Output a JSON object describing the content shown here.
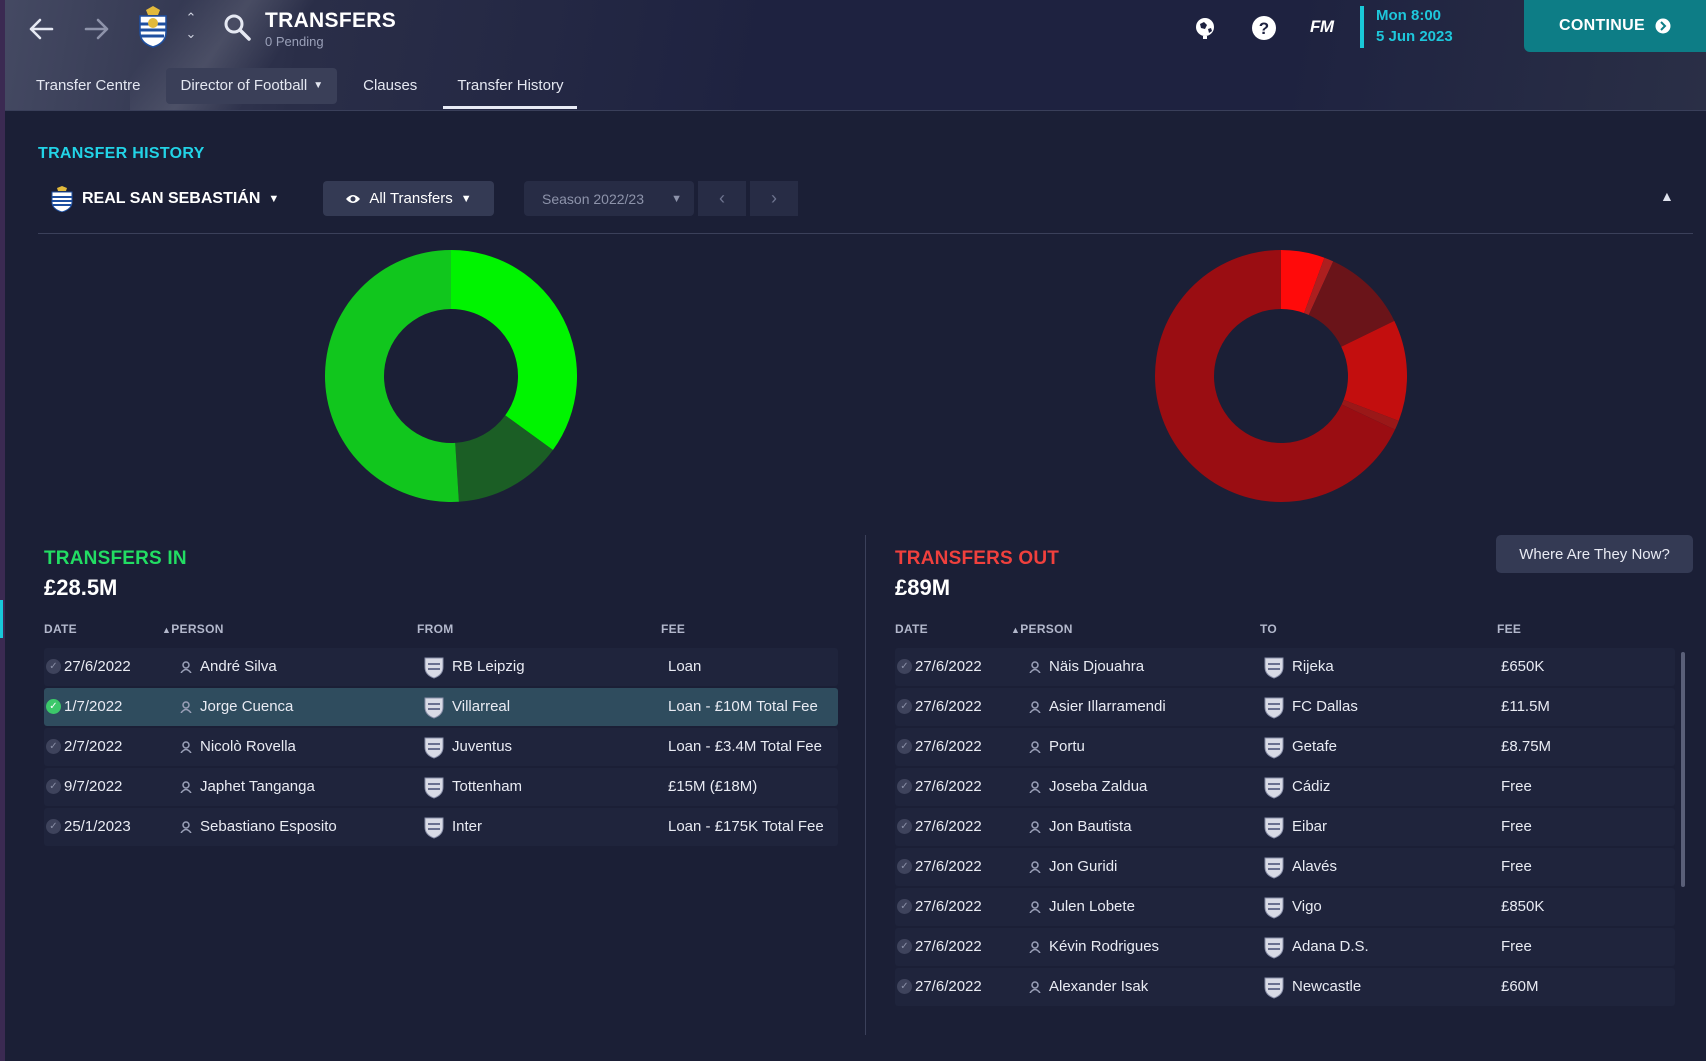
{
  "header": {
    "title": "TRANSFERS",
    "subtitle": "0 Pending",
    "nav_back_icon": "back-arrow-icon",
    "nav_forward_icon": "forward-arrow-icon",
    "tabs": [
      {
        "label": "Transfer Centre"
      },
      {
        "label": "Director of Football"
      },
      {
        "label": "Clauses"
      },
      {
        "label": "Transfer History"
      }
    ],
    "logo": "FM",
    "date_time": "Mon 8:00",
    "date_day": "5 Jun 2023",
    "continue_label": "CONTINUE",
    "accent": "#1ec7db",
    "continue_color": "#0d7d86"
  },
  "panel": {
    "title": "TRANSFER HISTORY",
    "club": "REAL SAN SEBASTIÁN",
    "filter": "All Transfers",
    "season": "Season 2022/23"
  },
  "transfers_in": {
    "label": "TRANSFERS IN",
    "total": "£28.5M",
    "color": "#14e05a",
    "headers": {
      "date": "DATE",
      "person": "PERSON",
      "from": "FROM",
      "fee": "FEE"
    },
    "rows": [
      {
        "date": "27/6/2022",
        "person": "André Silva",
        "club": "RB Leipzig",
        "fee": "Loan",
        "selected": false
      },
      {
        "date": "1/7/2022",
        "person": "Jorge Cuenca",
        "club": "Villarreal",
        "fee": "Loan - £10M Total Fee",
        "selected": true
      },
      {
        "date": "2/7/2022",
        "person": "Nicolò Rovella",
        "club": "Juventus",
        "fee": "Loan - £3.4M Total Fee",
        "selected": false
      },
      {
        "date": "9/7/2022",
        "person": "Japhet Tanganga",
        "club": "Tottenham",
        "fee": "£15M (£18M)",
        "selected": false
      },
      {
        "date": "25/1/2023",
        "person": "Sebastiano Esposito",
        "club": "Inter",
        "fee": "Loan - £175K Total Fee",
        "selected": false
      }
    ]
  },
  "transfers_out": {
    "label": "TRANSFERS OUT",
    "total": "£89M",
    "color": "#ee3b3b",
    "where_button": "Where Are They Now?",
    "headers": {
      "date": "DATE",
      "person": "PERSON",
      "to": "TO",
      "fee": "FEE"
    },
    "rows": [
      {
        "date": "27/6/2022",
        "person": "Näis Djouahra",
        "club": "Rijeka",
        "fee": "£650K"
      },
      {
        "date": "27/6/2022",
        "person": "Asier Illarramendi",
        "club": "FC Dallas",
        "fee": "£11.5M"
      },
      {
        "date": "27/6/2022",
        "person": "Portu",
        "club": "Getafe",
        "fee": "£8.75M"
      },
      {
        "date": "27/6/2022",
        "person": "Joseba Zaldua",
        "club": "Cádiz",
        "fee": "Free"
      },
      {
        "date": "27/6/2022",
        "person": "Jon Bautista",
        "club": "Eibar",
        "fee": "Free"
      },
      {
        "date": "27/6/2022",
        "person": "Jon Guridi",
        "club": "Alavés",
        "fee": "Free"
      },
      {
        "date": "27/6/2022",
        "person": "Julen Lobete",
        "club": "Vigo",
        "fee": "£850K"
      },
      {
        "date": "27/6/2022",
        "person": "Kévin Rodrigues",
        "club": "Adana D.S.",
        "fee": "Free"
      },
      {
        "date": "27/6/2022",
        "person": "Alexander Isak",
        "club": "Newcastle",
        "fee": "£60M"
      }
    ]
  },
  "donut_in": [
    {
      "value": 0.35,
      "color": "#00f400"
    },
    {
      "value": 0.14,
      "color": "#1b5e25"
    },
    {
      "value": 0.51,
      "color": "#11c61d"
    }
  ],
  "donut_out": [
    {
      "value": 0.056,
      "color": "#ff0a0a"
    },
    {
      "value": 0.012,
      "color": "#ad1f1f"
    },
    {
      "value": 0.11,
      "color": "#6a1419"
    },
    {
      "value": 0.13,
      "color": "#c30e0e"
    },
    {
      "value": 0.012,
      "color": "#9a1818"
    },
    {
      "value": 0.68,
      "color": "#9a0d12"
    }
  ]
}
